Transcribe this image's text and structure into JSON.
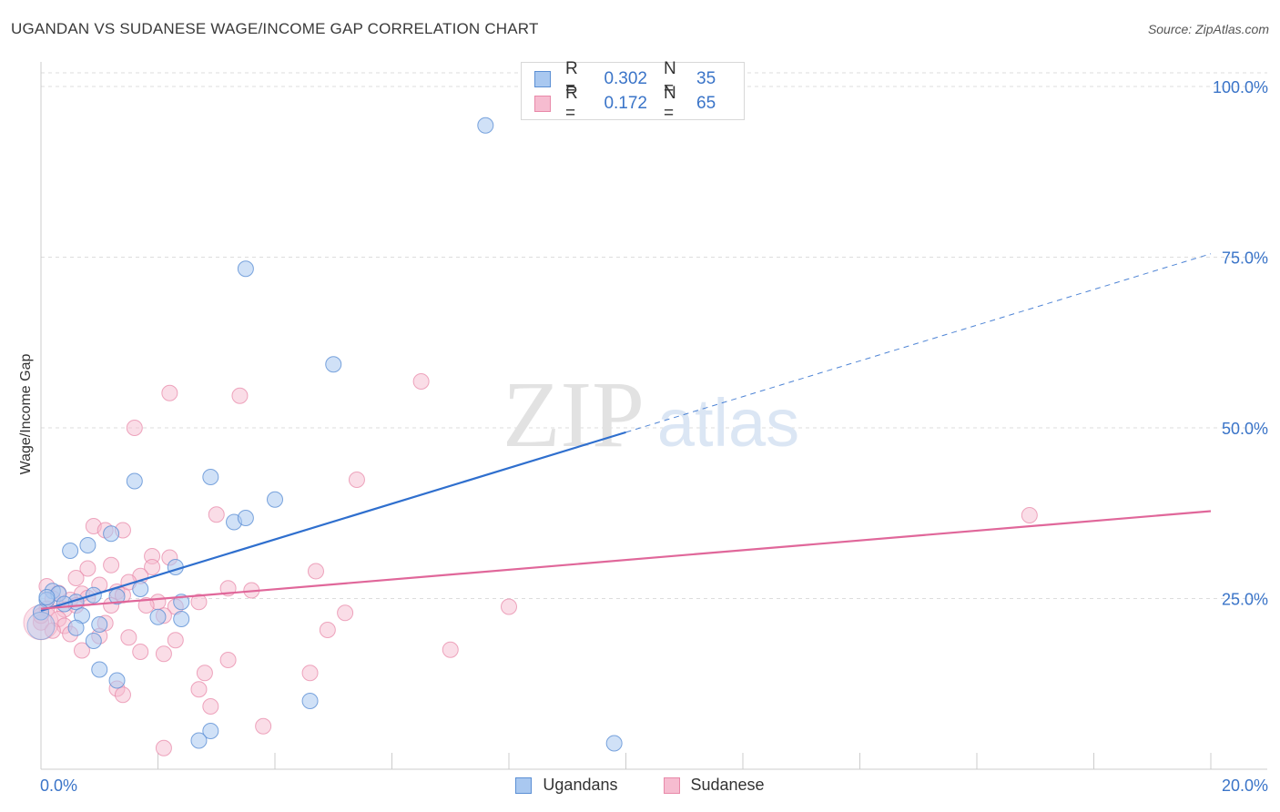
{
  "header": {
    "title": "UGANDAN VS SUDANESE WAGE/INCOME GAP CORRELATION CHART",
    "source": "Source: ZipAtlas.com"
  },
  "legend": {
    "r_label": "R =",
    "n_label": "N =",
    "rows": [
      {
        "r": "0.302",
        "n": "35"
      },
      {
        "r": "0.172",
        "n": "65"
      }
    ]
  },
  "bottom_legend": [
    "Ugandans",
    "Sudanese"
  ],
  "watermark": {
    "zip": "ZIP",
    "atlas": "atlas"
  },
  "colors": {
    "blue_fill": "#a9c8f0",
    "blue_stroke": "#5b8fd4",
    "blue_line": "#2f6fce",
    "pink_fill": "#f6bcd0",
    "pink_stroke": "#e889a9",
    "pink_line": "#e0679a",
    "tick_blue": "#3a74c8",
    "grid": "#dddddd"
  },
  "chart_data": {
    "type": "scatter",
    "title": "UGANDAN VS SUDANESE WAGE/INCOME GAP CORRELATION CHART",
    "xlabel": "",
    "ylabel": "Wage/Income Gap",
    "xlim": [
      0,
      20
    ],
    "ylim": [
      0,
      102
    ],
    "x_tick_labels": [
      "0.0%",
      "20.0%"
    ],
    "y_ticks": [
      25,
      50,
      75,
      100
    ],
    "y_tick_labels": [
      "25.0%",
      "50.0%",
      "75.0%",
      "100.0%"
    ],
    "grid": true,
    "series": [
      {
        "name": "Ugandans",
        "r": 0.302,
        "n": 35,
        "trend": {
          "x0": 0,
          "y0": 23.2,
          "x1": 20,
          "y1": 75.5,
          "solid_until": 10
        },
        "points": [
          [
            7.6,
            94.3
          ],
          [
            3.5,
            73.3
          ],
          [
            5.0,
            59.3
          ],
          [
            1.6,
            42.2
          ],
          [
            2.9,
            42.8
          ],
          [
            4.0,
            39.5
          ],
          [
            3.3,
            36.2
          ],
          [
            3.5,
            36.8
          ],
          [
            1.2,
            34.5
          ],
          [
            0.8,
            32.8
          ],
          [
            0.5,
            32.0
          ],
          [
            2.3,
            29.6
          ],
          [
            1.7,
            26.4
          ],
          [
            0.2,
            26.1
          ],
          [
            0.3,
            25.7
          ],
          [
            0.9,
            25.5
          ],
          [
            1.3,
            25.3
          ],
          [
            0.1,
            24.8
          ],
          [
            0.6,
            24.5
          ],
          [
            2.4,
            24.5
          ],
          [
            0.4,
            24.2
          ],
          [
            0.7,
            22.5
          ],
          [
            2.0,
            22.3
          ],
          [
            2.4,
            22.0
          ],
          [
            1.0,
            21.2
          ],
          [
            0.6,
            20.7
          ],
          [
            0.9,
            18.8
          ],
          [
            1.0,
            14.6
          ],
          [
            1.3,
            13.0
          ],
          [
            4.6,
            10.0
          ],
          [
            2.9,
            5.6
          ],
          [
            2.7,
            4.2
          ],
          [
            9.8,
            3.8
          ],
          [
            0.0,
            23.0
          ],
          [
            0.1,
            25.2
          ]
        ]
      },
      {
        "name": "Sudanese",
        "r": 0.172,
        "n": 65,
        "trend": {
          "x0": 0,
          "y0": 23.5,
          "x1": 20,
          "y1": 37.8
        },
        "points": [
          [
            6.5,
            56.8
          ],
          [
            2.2,
            55.1
          ],
          [
            3.4,
            54.7
          ],
          [
            1.6,
            50.0
          ],
          [
            5.4,
            42.4
          ],
          [
            16.9,
            37.2
          ],
          [
            3.0,
            37.3
          ],
          [
            0.9,
            35.6
          ],
          [
            1.1,
            35.0
          ],
          [
            1.4,
            35.0
          ],
          [
            1.9,
            31.2
          ],
          [
            1.9,
            29.6
          ],
          [
            1.2,
            29.9
          ],
          [
            0.8,
            29.4
          ],
          [
            4.7,
            29.0
          ],
          [
            1.7,
            28.3
          ],
          [
            0.6,
            28.0
          ],
          [
            1.0,
            27.0
          ],
          [
            3.2,
            26.5
          ],
          [
            3.6,
            26.2
          ],
          [
            0.3,
            25.8
          ],
          [
            1.3,
            26.0
          ],
          [
            0.7,
            25.7
          ],
          [
            1.4,
            25.5
          ],
          [
            0.2,
            25.0
          ],
          [
            0.5,
            24.8
          ],
          [
            2.0,
            24.5
          ],
          [
            2.7,
            24.5
          ],
          [
            1.8,
            24.0
          ],
          [
            1.2,
            24.0
          ],
          [
            2.3,
            23.8
          ],
          [
            0.1,
            23.5
          ],
          [
            0.4,
            23.4
          ],
          [
            2.1,
            22.5
          ],
          [
            0.3,
            22.0
          ],
          [
            8.0,
            23.8
          ],
          [
            5.2,
            22.9
          ],
          [
            0.0,
            21.5
          ],
          [
            0.4,
            21.0
          ],
          [
            1.1,
            21.4
          ],
          [
            4.9,
            20.4
          ],
          [
            0.5,
            19.8
          ],
          [
            1.0,
            19.5
          ],
          [
            1.5,
            19.3
          ],
          [
            2.3,
            18.9
          ],
          [
            0.7,
            17.4
          ],
          [
            1.7,
            17.2
          ],
          [
            2.1,
            16.9
          ],
          [
            7.0,
            17.5
          ],
          [
            3.2,
            16.0
          ],
          [
            2.8,
            14.1
          ],
          [
            4.6,
            14.1
          ],
          [
            1.3,
            11.8
          ],
          [
            2.7,
            11.7
          ],
          [
            1.4,
            10.9
          ],
          [
            2.9,
            9.2
          ],
          [
            3.8,
            6.3
          ],
          [
            2.1,
            3.1
          ],
          [
            0.0,
            22.5
          ],
          [
            0.2,
            20.3
          ],
          [
            0.1,
            26.8
          ],
          [
            0.6,
            24.0
          ],
          [
            1.5,
            27.4
          ],
          [
            2.2,
            31.0
          ],
          [
            0.8,
            25.1
          ]
        ]
      }
    ]
  }
}
